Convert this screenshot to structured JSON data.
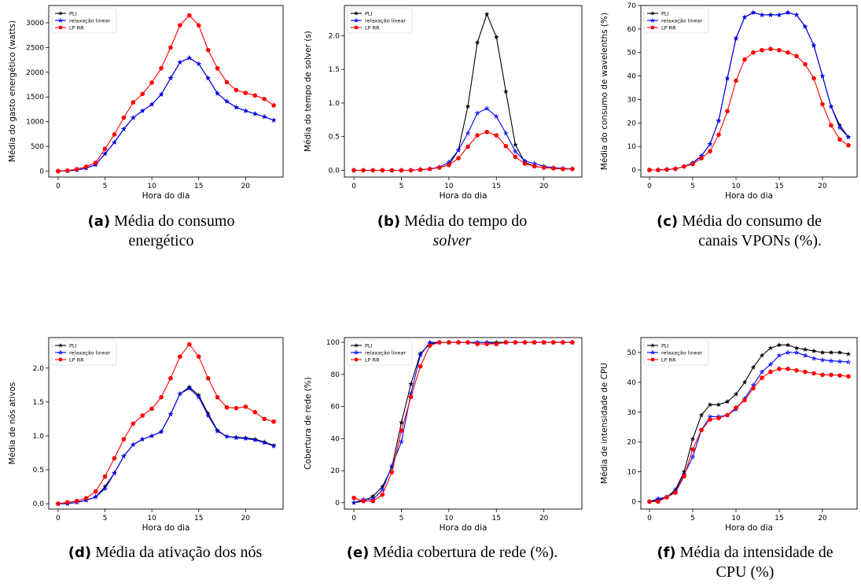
{
  "x_axis_label": "Hora do dia",
  "captions": [
    {
      "tag": "(a)",
      "text": "Média do consumo energético",
      "italic": ""
    },
    {
      "tag": "(b)",
      "text": "Média do tempo do",
      "italic": "solver"
    },
    {
      "tag": "(c)",
      "text": "Média do consumo de canais VPONs (%).",
      "italic": ""
    },
    {
      "tag": "(d)",
      "text": "Média da ativação dos nós",
      "italic": ""
    },
    {
      "tag": "(e)",
      "text": "Média cobertura de rede (%).",
      "italic": ""
    },
    {
      "tag": "(f)",
      "text": "Média da intensidade de CPU (%)",
      "italic": ""
    }
  ],
  "legend": [
    "PLI",
    "relaxação linear",
    "LP RR"
  ],
  "colors": {
    "PLI": "#000000",
    "relaxacao": "#0000ff",
    "LPRR": "#ff0000"
  },
  "chart_data": [
    {
      "type": "line",
      "ylabel": "Média do gasto energético (watts)",
      "xlabel": "Hora do dia",
      "xlim": [
        -1,
        24
      ],
      "ylim": [
        -120,
        3350
      ],
      "xticks": [
        0,
        5,
        10,
        15,
        20
      ],
      "yticks": [
        0,
        500,
        1000,
        1500,
        2000,
        2500,
        3000
      ],
      "x": [
        0,
        1,
        2,
        3,
        4,
        5,
        6,
        7,
        8,
        9,
        10,
        11,
        12,
        13,
        14,
        15,
        16,
        17,
        18,
        19,
        20,
        21,
        22,
        23
      ],
      "series": [
        {
          "name": "PLI",
          "values": [
            0,
            5,
            20,
            60,
            130,
            350,
            580,
            850,
            1080,
            1220,
            1350,
            1550,
            1880,
            2200,
            2290,
            2170,
            1880,
            1570,
            1410,
            1290,
            1220,
            1160,
            1100,
            1030
          ]
        },
        {
          "name": "relaxação linear",
          "values": [
            0,
            5,
            20,
            60,
            130,
            350,
            580,
            850,
            1080,
            1220,
            1350,
            1550,
            1880,
            2200,
            2290,
            2170,
            1880,
            1570,
            1410,
            1290,
            1220,
            1160,
            1100,
            1030
          ]
        },
        {
          "name": "LP RR",
          "values": [
            0,
            10,
            40,
            90,
            170,
            450,
            740,
            1080,
            1390,
            1560,
            1790,
            2080,
            2500,
            2950,
            3150,
            2950,
            2450,
            2080,
            1800,
            1640,
            1580,
            1530,
            1460,
            1330
          ]
        }
      ]
    },
    {
      "type": "line",
      "ylabel": "Média do tempo de solver (s)",
      "xlabel": "Hora do dia",
      "xlim": [
        -1,
        24
      ],
      "ylim": [
        -0.1,
        2.45
      ],
      "xticks": [
        0,
        5,
        10,
        15,
        20
      ],
      "yticks": [
        0.0,
        0.5,
        1.0,
        1.5,
        2.0
      ],
      "x": [
        0,
        1,
        2,
        3,
        4,
        5,
        6,
        7,
        8,
        9,
        10,
        11,
        12,
        13,
        14,
        15,
        16,
        17,
        18,
        19,
        20,
        21,
        22,
        23
      ],
      "series": [
        {
          "name": "PLI",
          "values": [
            0,
            0,
            0,
            0,
            0,
            0,
            0,
            0.01,
            0.02,
            0.04,
            0.08,
            0.3,
            0.95,
            1.9,
            2.32,
            1.98,
            1.17,
            0.38,
            0.12,
            0.06,
            0.04,
            0.03,
            0.02,
            0.02
          ]
        },
        {
          "name": "relaxação linear",
          "values": [
            0,
            0,
            0,
            0,
            0,
            0,
            0,
            0.01,
            0.02,
            0.05,
            0.12,
            0.3,
            0.55,
            0.85,
            0.92,
            0.8,
            0.55,
            0.28,
            0.14,
            0.1,
            0.06,
            0.04,
            0.03,
            0.02
          ]
        },
        {
          "name": "LP RR",
          "values": [
            0,
            0,
            0,
            0,
            0,
            0,
            0,
            0.01,
            0.02,
            0.04,
            0.08,
            0.18,
            0.35,
            0.52,
            0.57,
            0.52,
            0.36,
            0.2,
            0.1,
            0.06,
            0.04,
            0.03,
            0.02,
            0.02
          ]
        }
      ]
    },
    {
      "type": "line",
      "ylabel": "Média do consumo de wavelenths (%)",
      "xlabel": "Hora do dia",
      "xlim": [
        -1,
        24
      ],
      "ylim": [
        -3,
        70
      ],
      "xticks": [
        0,
        5,
        10,
        15,
        20
      ],
      "yticks": [
        0,
        10,
        20,
        30,
        40,
        50,
        60,
        70
      ],
      "x": [
        0,
        1,
        2,
        3,
        4,
        5,
        6,
        7,
        8,
        9,
        10,
        11,
        12,
        13,
        14,
        15,
        16,
        17,
        18,
        19,
        20,
        21,
        22,
        23
      ],
      "series": [
        {
          "name": "PLI",
          "values": [
            0,
            0,
            0.2,
            0.5,
            1.5,
            3,
            6,
            11,
            21,
            39,
            56,
            65,
            67,
            66,
            66,
            66,
            67,
            66,
            61,
            53,
            40,
            27,
            19,
            14
          ]
        },
        {
          "name": "relaxação linear",
          "values": [
            0,
            0,
            0.2,
            0.5,
            1.5,
            3,
            6,
            11,
            21,
            39,
            56,
            65,
            67,
            66,
            66,
            66,
            67,
            66,
            61,
            53,
            40,
            27,
            18,
            14
          ]
        },
        {
          "name": "LP RR",
          "values": [
            0,
            0,
            0.2,
            0.5,
            1.5,
            2.5,
            5,
            8,
            15,
            25,
            38,
            47,
            50,
            51,
            51.5,
            51,
            50,
            48.5,
            45,
            39,
            28,
            19,
            13,
            10.5
          ]
        }
      ]
    },
    {
      "type": "line",
      "ylabel": "Média de nós ativos",
      "xlabel": "Hora do dia",
      "xlim": [
        -1,
        24
      ],
      "ylim": [
        -0.08,
        2.45
      ],
      "xticks": [
        0,
        5,
        10,
        15,
        20
      ],
      "yticks": [
        0.0,
        0.5,
        1.0,
        1.5,
        2.0
      ],
      "x": [
        0,
        1,
        2,
        3,
        4,
        5,
        6,
        7,
        8,
        9,
        10,
        11,
        12,
        13,
        14,
        15,
        16,
        17,
        18,
        19,
        20,
        21,
        22,
        23
      ],
      "series": [
        {
          "name": "PLI",
          "values": [
            0,
            0,
            0.02,
            0.05,
            0.1,
            0.25,
            0.45,
            0.7,
            0.87,
            0.95,
            1.0,
            1.06,
            1.32,
            1.62,
            1.72,
            1.6,
            1.33,
            1.08,
            0.99,
            0.98,
            0.97,
            0.95,
            0.91,
            0.86
          ]
        },
        {
          "name": "relaxação linear",
          "values": [
            0,
            0,
            0.02,
            0.05,
            0.1,
            0.22,
            0.45,
            0.7,
            0.87,
            0.95,
            1.0,
            1.06,
            1.32,
            1.62,
            1.7,
            1.57,
            1.3,
            1.07,
            0.99,
            0.97,
            0.96,
            0.94,
            0.9,
            0.85
          ]
        },
        {
          "name": "LP RR",
          "values": [
            0,
            0.02,
            0.04,
            0.08,
            0.18,
            0.4,
            0.67,
            0.95,
            1.18,
            1.3,
            1.4,
            1.57,
            1.85,
            2.17,
            2.35,
            2.17,
            1.85,
            1.57,
            1.42,
            1.41,
            1.43,
            1.35,
            1.25,
            1.21
          ]
        }
      ]
    },
    {
      "type": "line",
      "ylabel": "Cobertura de rede (%)",
      "xlabel": "Hora do dia",
      "xlim": [
        -1,
        24
      ],
      "ylim": [
        -4,
        103
      ],
      "xticks": [
        0,
        5,
        10,
        15,
        20
      ],
      "yticks": [
        0,
        20,
        40,
        60,
        80,
        100
      ],
      "x": [
        0,
        1,
        2,
        3,
        4,
        5,
        6,
        7,
        8,
        9,
        10,
        11,
        12,
        13,
        14,
        15,
        16,
        17,
        18,
        19,
        20,
        21,
        22,
        23
      ],
      "series": [
        {
          "name": "PLI",
          "values": [
            0,
            1,
            4,
            10,
            22,
            50,
            74,
            93,
            99,
            100,
            100,
            100,
            100,
            100,
            100,
            100,
            100,
            100,
            100,
            100,
            100,
            100,
            100,
            100
          ]
        },
        {
          "name": "relaxação linear",
          "values": [
            0,
            2,
            2,
            8,
            23,
            38,
            68,
            92,
            100,
            100,
            100,
            100,
            100,
            100,
            100,
            99,
            100,
            100,
            100,
            100,
            100,
            100,
            100,
            100
          ]
        },
        {
          "name": "LP RR",
          "values": [
            3,
            1,
            1,
            5,
            19,
            45,
            66,
            85,
            98,
            100,
            100,
            100,
            100,
            99,
            99,
            99,
            100,
            100,
            100,
            100,
            100,
            100,
            100,
            100
          ]
        }
      ]
    },
    {
      "type": "line",
      "ylabel": "Média de intensidade de CPU",
      "xlabel": "Hora do dia",
      "xlim": [
        -1,
        24
      ],
      "ylim": [
        -2.5,
        55
      ],
      "xticks": [
        0,
        5,
        10,
        15,
        20
      ],
      "yticks": [
        0,
        10,
        20,
        30,
        40,
        50
      ],
      "x": [
        0,
        1,
        2,
        3,
        4,
        5,
        6,
        7,
        8,
        9,
        10,
        11,
        12,
        13,
        14,
        15,
        16,
        17,
        18,
        19,
        20,
        21,
        22,
        23
      ],
      "series": [
        {
          "name": "PLI",
          "values": [
            0,
            0.5,
            1.5,
            4,
            10,
            21,
            29,
            32.5,
            32.5,
            33.5,
            36,
            40,
            45,
            49,
            51.5,
            52.5,
            52.5,
            51.5,
            51,
            50.5,
            50,
            50,
            50,
            49.5
          ]
        },
        {
          "name": "relaxação linear",
          "values": [
            0,
            1,
            1.5,
            3.5,
            9,
            15,
            24,
            28.5,
            28.5,
            29,
            31,
            34.5,
            39,
            43.5,
            46,
            49,
            50,
            50,
            49,
            48,
            47.5,
            47.2,
            47,
            46.8
          ]
        },
        {
          "name": "LP RR",
          "values": [
            0,
            0,
            1.5,
            3,
            8.5,
            17.5,
            24,
            27.5,
            28,
            29,
            31.5,
            34,
            38,
            41.5,
            43.5,
            44.5,
            44.5,
            44,
            43.5,
            43,
            42.5,
            42.5,
            42.3,
            42
          ]
        }
      ]
    }
  ]
}
